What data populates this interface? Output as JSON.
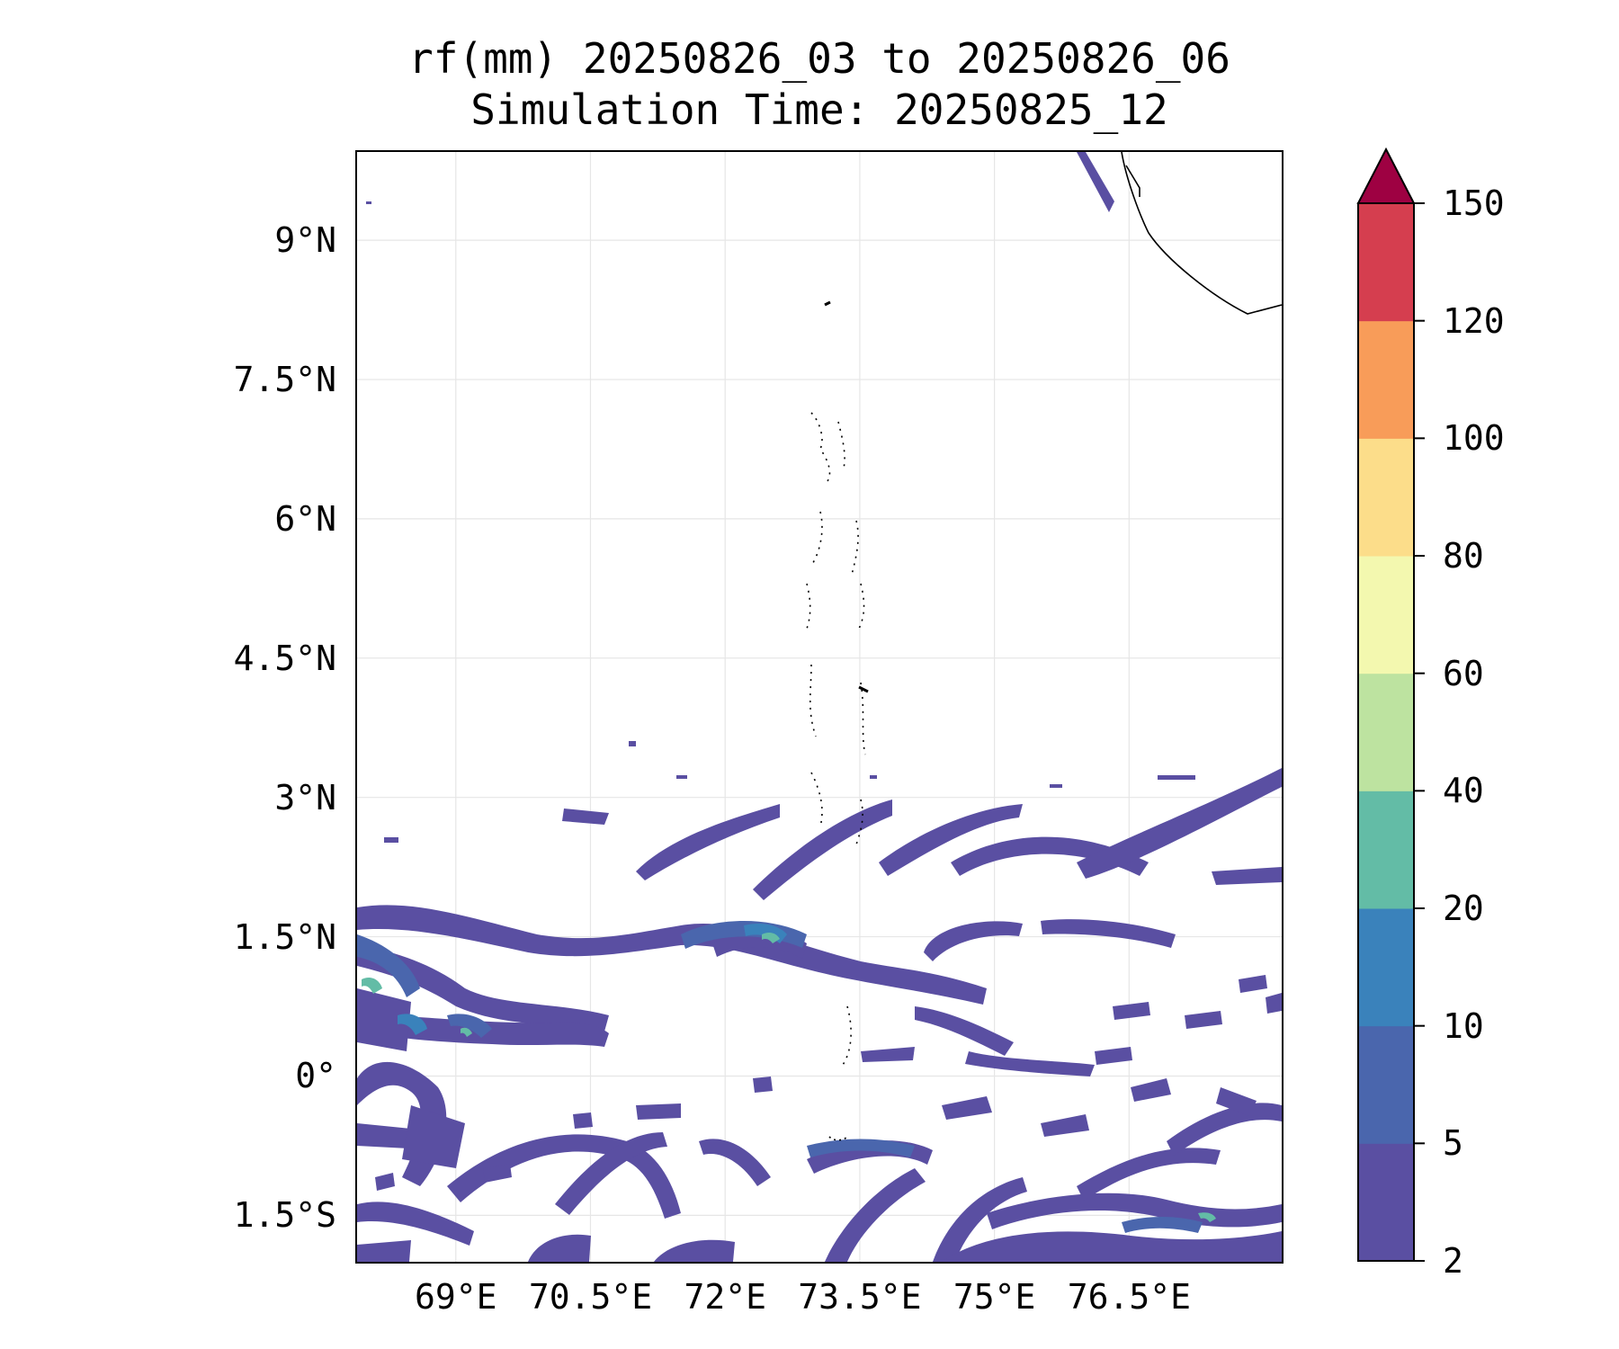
{
  "title_line1": "rf(mm) 20250826_03 to 20250826_06",
  "title_line2": "Simulation Time: 20250825_12",
  "map": {
    "extent_lon": [
      67.9,
      78.2
    ],
    "extent_lat": [
      -2.0,
      9.95
    ],
    "lat_ticks": [
      {
        "value": 9.0,
        "label": "9°N"
      },
      {
        "value": 7.5,
        "label": "7.5°N"
      },
      {
        "value": 6.0,
        "label": "6°N"
      },
      {
        "value": 4.5,
        "label": "4.5°N"
      },
      {
        "value": 3.0,
        "label": "3°N"
      },
      {
        "value": 1.5,
        "label": "1.5°N"
      },
      {
        "value": 0.0,
        "label": "0°"
      },
      {
        "value": -1.5,
        "label": "1.5°S"
      }
    ],
    "lon_ticks": [
      {
        "value": 69.0,
        "label": "69°E"
      },
      {
        "value": 70.5,
        "label": "70.5°E"
      },
      {
        "value": 72.0,
        "label": "72°E"
      },
      {
        "value": 73.5,
        "label": "73.5°E"
      },
      {
        "value": 75.0,
        "label": "75°E"
      },
      {
        "value": 76.5,
        "label": "76.5°E"
      }
    ],
    "gridlines": true
  },
  "colorbar": {
    "levels": [
      "2",
      "5",
      "10",
      "20",
      "40",
      "60",
      "80",
      "100",
      "120",
      "150"
    ],
    "colors": [
      "#5a4fa2",
      "#4a66ad",
      "#3a82bb",
      "#63bca6",
      "#bde3a0",
      "#f3f8af",
      "#fcdd8a",
      "#f89c59",
      "#d53e4f"
    ],
    "extend_color": "#9e0142",
    "extend": "max"
  }
}
